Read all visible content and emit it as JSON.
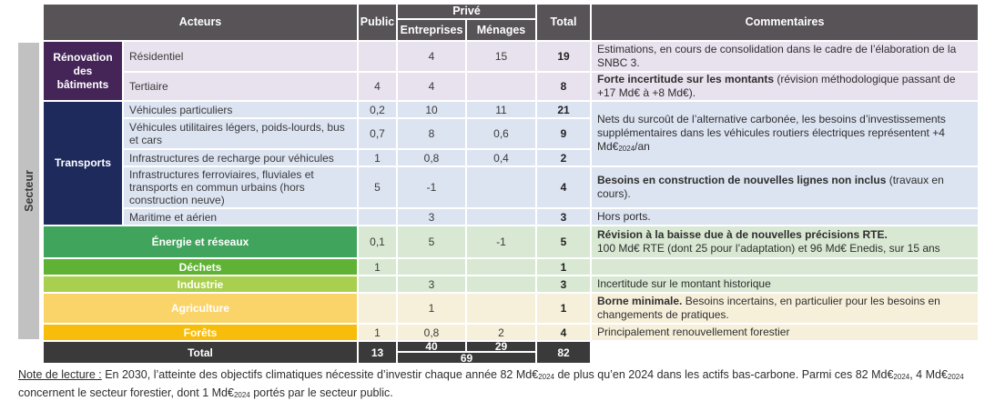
{
  "header": {
    "secteur": "Secteur",
    "acteurs": "Acteurs",
    "public": "Public",
    "prive": "Privé",
    "entreprises": "Entreprises",
    "menages": "Ménages",
    "total": "Total",
    "commentaires": "Commentaires"
  },
  "palette": {
    "header_bg": "#575356",
    "total_bg": "#3b3a3a",
    "renovation_purple": "#452558",
    "transports_navy": "#1e2a5c",
    "energie_green": "#41a45c",
    "dechets_green": "#5fb233",
    "industrie_lime": "#a8cf4d",
    "agriculture_gold": "#fbd469",
    "forets_gold": "#f8bd0a",
    "renovation_row_bg": "#e8e1ee",
    "transports_row_bg": "#dce3f1",
    "energie_row_bg": "#d9e8d3",
    "agri_row_bg": "#f6f0db",
    "secteur_bar_bg": "#c2c1c1"
  },
  "sectors": [
    {
      "label": "Rénovation des bâtiments",
      "color": "#452558"
    },
    {
      "label": "Transports",
      "color": "#1e2a5c"
    }
  ],
  "rows": [
    {
      "label": "Résidentiel",
      "public": "",
      "entreprises": "4",
      "menages": "15",
      "total": "19"
    },
    {
      "label": "Tertiaire",
      "public": "4",
      "entreprises": "4",
      "menages": "",
      "total": "8"
    },
    {
      "label": "Véhicules particuliers",
      "public": "0,2",
      "entreprises": "10",
      "menages": "11",
      "total": "21"
    },
    {
      "label": "Véhicules utilitaires légers, poids-lourds, bus et cars",
      "public": "0,7",
      "entreprises": "8",
      "menages": "0,6",
      "total": "9"
    },
    {
      "label": "Infrastructures de recharge pour véhicules",
      "public": "1",
      "entreprises": "0,8",
      "menages": "0,4",
      "total": "2"
    },
    {
      "label": "Infrastructures ferroviaires, fluviales et transports en commun urbains (hors construction neuve)",
      "public": "5",
      "entreprises": "-1",
      "menages": "",
      "total": "4"
    },
    {
      "label": "Maritime et aérien",
      "public": "",
      "entreprises": "3",
      "menages": "",
      "total": "3"
    },
    {
      "label": "Énergie et réseaux",
      "color": "#41a45c",
      "public": "0,1",
      "entreprises": "5",
      "menages": "-1",
      "total": "5"
    },
    {
      "label": "Déchets",
      "color": "#5fb233",
      "public": "1",
      "entreprises": "",
      "menages": "",
      "total": "1"
    },
    {
      "label": "Industrie",
      "color": "#a8cf4d",
      "public": "",
      "entreprises": "3",
      "menages": "",
      "total": "3"
    },
    {
      "label": "Agriculture",
      "color": "#fbd469",
      "public": "",
      "entreprises": "1",
      "menages": "",
      "total": "1"
    },
    {
      "label": "Forêts",
      "color": "#f8bd0a",
      "public": "1",
      "entreprises": "0,8",
      "menages": "2",
      "total": "4"
    }
  ],
  "comments": [
    [
      {
        "t": "Estimations, en cours de consolidation dans le cadre de l’élaboration de la SNBC 3."
      }
    ],
    [
      {
        "t": "Forte incertitude sur les montants",
        "b": 1
      },
      {
        "t": " (révision méthodologique passant de +17 Md€ à +8 Md€)."
      }
    ],
    [
      {
        "t": "Nets du surcoût de l’alternative carbonée, les besoins d’investissements supplémentaires dans les véhicules routiers électriques représentent +4 Md€"
      },
      {
        "t": "2024",
        "sub": 1
      },
      {
        "t": "/an"
      }
    ],
    [
      {
        "t": "Besoins en construction de nouvelles lignes non inclus",
        "b": 1
      },
      {
        "t": " (travaux en cours)."
      }
    ],
    [
      {
        "t": "Hors ports."
      }
    ],
    [
      {
        "t": "Révision à la baisse due à de nouvelles précisions RTE.",
        "b": 1
      },
      {
        "t": "\n100 Md€ RTE (dont 25 pour l’adaptation) et 96 Md€ Enedis, sur 15 ans"
      }
    ],
    [],
    [
      {
        "t": "Incertitude sur le montant historique"
      }
    ],
    [
      {
        "t": "Borne minimale.",
        "b": 1
      },
      {
        "t": " Besoins incertains, en particulier pour les besoins en changements de pratiques."
      }
    ],
    [
      {
        "t": "Principalement renouvellement forestier"
      }
    ]
  ],
  "total_row": {
    "label": "Total",
    "public": "13",
    "entreprises": "40",
    "menages": "29",
    "prive_total": "69",
    "total": "82"
  },
  "note": [
    {
      "t": "Note de lecture :",
      "u": 1
    },
    {
      "t": " En 2030, l’atteinte des objectifs climatiques nécessite d’investir chaque année 82 Md€"
    },
    {
      "t": "2024",
      "sub": 1
    },
    {
      "t": " de plus qu’en 2024 dans les actifs bas-carbone. Parmi ces 82 Md€"
    },
    {
      "t": "2024",
      "sub": 1
    },
    {
      "t": ", 4 Md€"
    },
    {
      "t": "2024",
      "sub": 1
    },
    {
      "t": " concernent le secteur forestier, dont 1 Md€"
    },
    {
      "t": "2024",
      "sub": 1
    },
    {
      "t": " portés par le secteur public."
    }
  ]
}
